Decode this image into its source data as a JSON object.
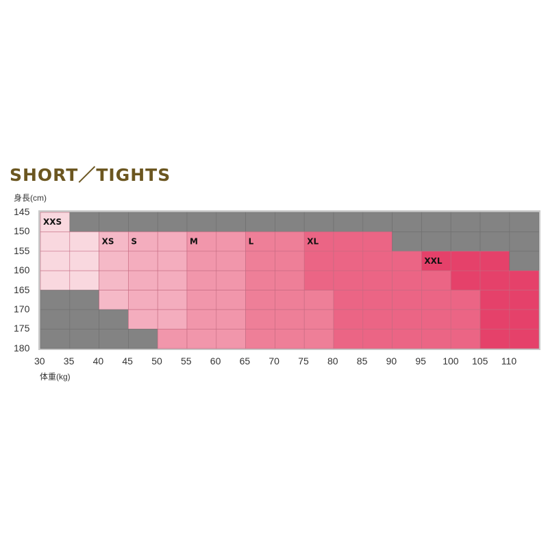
{
  "chart_data": {
    "type": "heatmap",
    "title": "SHORT／TIGHTS",
    "ylabel": "身長(cm)",
    "xlabel": "体重(kg)",
    "x_ticks": [
      30,
      35,
      40,
      45,
      50,
      55,
      60,
      65,
      70,
      75,
      80,
      85,
      90,
      95,
      100,
      105,
      110
    ],
    "y_ticks": [
      145,
      150,
      155,
      160,
      165,
      170,
      175,
      180
    ],
    "size_labels": [
      {
        "text": "XXS",
        "row": 0,
        "col": 0
      },
      {
        "text": "XS",
        "row": 1,
        "col": 2
      },
      {
        "text": "S",
        "row": 1,
        "col": 3
      },
      {
        "text": "M",
        "row": 1,
        "col": 5
      },
      {
        "text": "L",
        "row": 1,
        "col": 7
      },
      {
        "text": "XL",
        "row": 1,
        "col": 9
      },
      {
        "text": "XXL",
        "row": 2,
        "col": 13
      }
    ],
    "cells": [
      [
        "XXS",
        "-",
        "-",
        "-",
        "-",
        "-",
        "-",
        "-",
        "-",
        "-",
        "-",
        "-",
        "-",
        "-",
        "-",
        "-",
        "-"
      ],
      [
        "XXS",
        "XXS",
        "XS",
        "S",
        "S",
        "M",
        "M",
        "L",
        "L",
        "XL",
        "XL",
        "XL",
        "-",
        "-",
        "-",
        "-",
        "-"
      ],
      [
        "XXS",
        "XXS",
        "XS",
        "S",
        "S",
        "M",
        "M",
        "L",
        "L",
        "XL",
        "XL",
        "XL",
        "XL",
        "XXL",
        "XXL",
        "XXL",
        "-"
      ],
      [
        "XXS",
        "XXS",
        "XS",
        "S",
        "S",
        "M",
        "M",
        "L",
        "L",
        "XL",
        "XL",
        "XL",
        "XL",
        "XL",
        "XXL",
        "XXL",
        "XXL"
      ],
      [
        "-",
        "-",
        "XS",
        "S",
        "S",
        "M",
        "M",
        "L",
        "L",
        "L",
        "XL",
        "XL",
        "XL",
        "XL",
        "XL",
        "XXL",
        "XXL"
      ],
      [
        "-",
        "-",
        "-",
        "S",
        "S",
        "M",
        "M",
        "L",
        "L",
        "L",
        "XL",
        "XL",
        "XL",
        "XL",
        "XL",
        "XXL",
        "XXL"
      ],
      [
        "-",
        "-",
        "-",
        "-",
        "M",
        "M",
        "M",
        "L",
        "L",
        "L",
        "XL",
        "XL",
        "XL",
        "XL",
        "XL",
        "XXL",
        "XXL"
      ]
    ],
    "colors": {
      "-": "#838383",
      "XXS": "#f9d8df",
      "XS": "#f5b9c7",
      "S": "#f4adbe",
      "M": "#f196ab",
      "L": "#ee7f98",
      "XL": "#eb6585",
      "XXL": "#e5416a",
      "frame": "#c9c9c9",
      "title": "#6b5620"
    }
  }
}
